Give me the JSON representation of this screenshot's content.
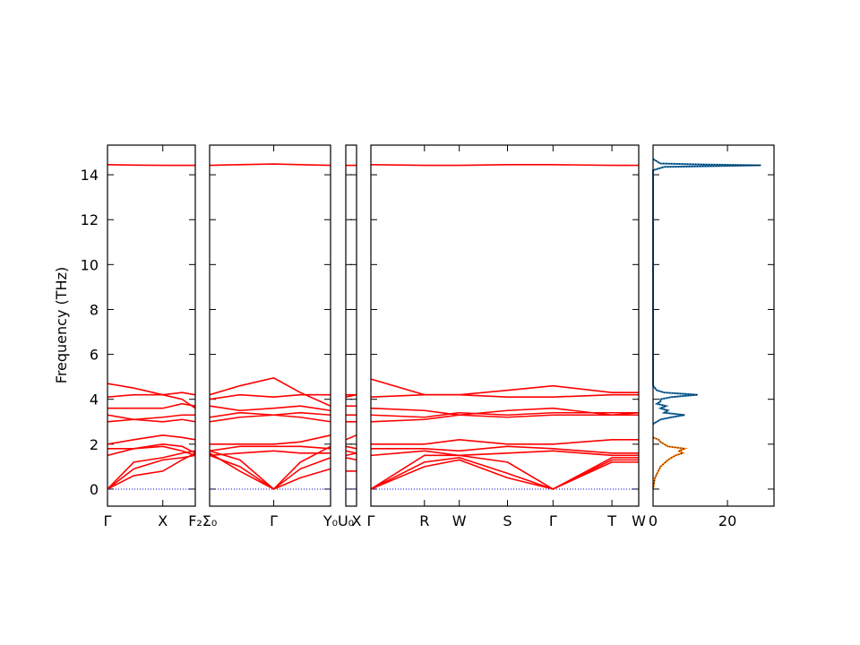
{
  "chart_data": [
    {
      "type": "line",
      "ylabel": "Frequency (THz)",
      "line_color": "#ff0000",
      "zero_line": true,
      "x": [
        0,
        0.3,
        0.63,
        0.85,
        1
      ],
      "xlim": [
        0,
        1
      ],
      "xticks": [
        {
          "value": 0,
          "label": "Γ"
        },
        {
          "value": 0.63,
          "label": "X"
        },
        {
          "value": 1,
          "label": "F₂"
        }
      ],
      "ylim": [
        -0.76,
        15.32
      ],
      "yticks": [
        0,
        2,
        4,
        6,
        8,
        10,
        12,
        14
      ],
      "series": [
        {
          "values": [
            0,
            0.6,
            0.8,
            1.3,
            1.6
          ]
        },
        {
          "values": [
            0,
            0.9,
            1.3,
            1.4,
            1.5
          ]
        },
        {
          "values": [
            0,
            1.2,
            1.4,
            1.6,
            1.7
          ]
        },
        {
          "values": [
            1.5,
            1.8,
            1.9,
            1.7,
            1.5
          ]
        },
        {
          "values": [
            1.8,
            1.8,
            2.0,
            1.9,
            1.6
          ]
        },
        {
          "values": [
            2.0,
            2.2,
            2.4,
            2.3,
            2.2
          ]
        },
        {
          "values": [
            3.0,
            3.1,
            3.0,
            3.1,
            3.0
          ]
        },
        {
          "values": [
            3.3,
            3.1,
            3.2,
            3.3,
            3.3
          ]
        },
        {
          "values": [
            3.6,
            3.6,
            3.6,
            3.8,
            3.7
          ]
        },
        {
          "values": [
            4.1,
            4.2,
            4.2,
            4.0,
            3.6
          ]
        },
        {
          "values": [
            4.7,
            4.5,
            4.2,
            4.3,
            4.2
          ]
        },
        {
          "values": [
            14.45,
            14.43,
            14.42,
            14.42,
            14.42
          ]
        }
      ]
    },
    {
      "type": "line",
      "line_color": "#ff0000",
      "zero_line": true,
      "x": [
        0,
        0.25,
        0.53,
        0.75,
        1
      ],
      "xlim": [
        0,
        1
      ],
      "xticks": [
        {
          "value": 0,
          "label": "Σ₀"
        },
        {
          "value": 0.53,
          "label": "Γ"
        },
        {
          "value": 1,
          "label": "Y₀"
        }
      ],
      "ylim": [
        -0.76,
        15.32
      ],
      "series": [
        {
          "values": [
            1.6,
            0.8,
            0,
            0.5,
            0.9
          ]
        },
        {
          "values": [
            1.5,
            1.0,
            0,
            0.9,
            1.4
          ]
        },
        {
          "values": [
            1.7,
            1.3,
            0,
            1.2,
            1.9
          ]
        },
        {
          "values": [
            1.5,
            1.6,
            1.7,
            1.6,
            1.6
          ]
        },
        {
          "values": [
            1.7,
            1.9,
            1.9,
            1.9,
            1.8
          ]
        },
        {
          "values": [
            2.0,
            2.0,
            2.0,
            2.1,
            2.4
          ]
        },
        {
          "values": [
            3.0,
            3.2,
            3.3,
            3.2,
            3.0
          ]
        },
        {
          "values": [
            3.2,
            3.4,
            3.3,
            3.4,
            3.3
          ]
        },
        {
          "values": [
            3.7,
            3.5,
            3.6,
            3.7,
            3.5
          ]
        },
        {
          "values": [
            4.0,
            4.2,
            4.1,
            4.2,
            4.2
          ]
        },
        {
          "values": [
            4.2,
            4.6,
            4.95,
            4.3,
            3.7
          ]
        },
        {
          "values": [
            14.42,
            14.45,
            14.48,
            14.45,
            14.42
          ]
        }
      ]
    },
    {
      "type": "line",
      "line_color": "#ff0000",
      "zero_line": true,
      "x": [
        0,
        1
      ],
      "xlim": [
        0,
        1
      ],
      "xticks": [
        {
          "value": 0,
          "label": "U₀"
        },
        {
          "value": 1,
          "label": "X"
        }
      ],
      "ylim": [
        -0.76,
        15.32
      ],
      "series": [
        {
          "values": [
            0.8,
            0.8
          ]
        },
        {
          "values": [
            1.4,
            1.3
          ]
        },
        {
          "values": [
            1.7,
            1.6
          ]
        },
        {
          "values": [
            1.5,
            1.6
          ]
        },
        {
          "values": [
            1.9,
            1.8
          ]
        },
        {
          "values": [
            2.2,
            2.4
          ]
        },
        {
          "values": [
            3.0,
            3.0
          ]
        },
        {
          "values": [
            3.3,
            3.3
          ]
        },
        {
          "values": [
            3.7,
            3.7
          ]
        },
        {
          "values": [
            4.1,
            4.2
          ]
        },
        {
          "values": [
            4.2,
            4.2
          ]
        },
        {
          "values": [
            14.42,
            14.42
          ]
        }
      ]
    },
    {
      "type": "line",
      "line_color": "#ff0000",
      "zero_line": true,
      "x": [
        0,
        0.2,
        0.33,
        0.51,
        0.68,
        0.9,
        1
      ],
      "xlim": [
        0,
        1
      ],
      "xticks": [
        {
          "value": 0,
          "label": "Γ"
        },
        {
          "value": 0.2,
          "label": "R"
        },
        {
          "value": 0.33,
          "label": "W"
        },
        {
          "value": 0.51,
          "label": "S"
        },
        {
          "value": 0.68,
          "label": "Γ"
        },
        {
          "value": 0.9,
          "label": "T"
        },
        {
          "value": 1,
          "label": "W"
        }
      ],
      "ylim": [
        -0.76,
        15.32
      ],
      "series": [
        {
          "values": [
            0,
            1.0,
            1.3,
            0.5,
            0,
            1.2,
            1.2
          ]
        },
        {
          "values": [
            0,
            1.2,
            1.4,
            0.7,
            0,
            1.3,
            1.3
          ]
        },
        {
          "values": [
            0,
            1.5,
            1.5,
            1.2,
            0,
            1.4,
            1.4
          ]
        },
        {
          "values": [
            1.5,
            1.7,
            1.5,
            1.6,
            1.7,
            1.5,
            1.5
          ]
        },
        {
          "values": [
            1.8,
            1.8,
            1.7,
            1.9,
            1.8,
            1.6,
            1.6
          ]
        },
        {
          "values": [
            2.0,
            2.0,
            2.2,
            2.0,
            2.0,
            2.2,
            2.2
          ]
        },
        {
          "values": [
            3.0,
            3.1,
            3.3,
            3.2,
            3.3,
            3.3,
            3.3
          ]
        },
        {
          "values": [
            3.3,
            3.2,
            3.4,
            3.3,
            3.4,
            3.4,
            3.4
          ]
        },
        {
          "values": [
            3.6,
            3.5,
            3.3,
            3.5,
            3.6,
            3.3,
            3.4
          ]
        },
        {
          "values": [
            4.1,
            4.2,
            4.2,
            4.1,
            4.1,
            4.2,
            4.2
          ]
        },
        {
          "values": [
            4.9,
            4.2,
            4.2,
            4.4,
            4.6,
            4.3,
            4.3
          ]
        },
        {
          "values": [
            14.45,
            14.42,
            14.42,
            14.45,
            14.45,
            14.42,
            14.42
          ]
        }
      ]
    },
    {
      "type": "line",
      "orientation": "horizontal",
      "xlim": [
        0,
        32.5
      ],
      "xticks": [
        0,
        20
      ],
      "ylim": [
        -0.76,
        15.32
      ],
      "series": [
        {
          "color": "#1f77b4",
          "y": [
            2.9,
            3.1,
            3.2,
            3.3,
            3.4,
            3.5,
            3.6,
            3.7,
            3.8,
            3.9,
            4.0,
            4.1,
            4.2,
            4.3,
            4.4,
            4.6,
            14.2,
            14.35,
            14.42,
            14.45,
            14.5,
            14.7
          ],
          "values": [
            0,
            2,
            5,
            8.5,
            3,
            4,
            2,
            3.5,
            1,
            2,
            2,
            5,
            12,
            3,
            1,
            0,
            0,
            3,
            29,
            15,
            2,
            0
          ]
        },
        {
          "color": "#ff7f0e",
          "y": [
            0,
            0.5,
            1.0,
            1.3,
            1.5,
            1.6,
            1.7,
            1.8,
            1.9,
            2.0,
            2.1,
            2.2,
            2.3
          ],
          "values": [
            0,
            0.5,
            2,
            4,
            6,
            8,
            7,
            8.5,
            4,
            3,
            2,
            1.5,
            0
          ]
        }
      ]
    }
  ]
}
